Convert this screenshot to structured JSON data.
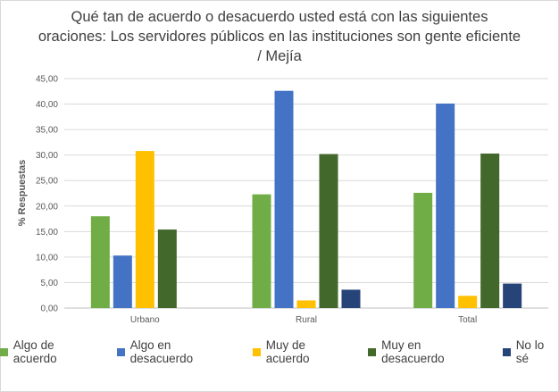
{
  "chart_data": {
    "type": "bar",
    "title": "Qué tan de acuerdo o desacuerdo usted está con las siguientes oraciones: Los servidores públicos en las instituciones son gente eficiente / Mejía",
    "xlabel": "",
    "ylabel": "% Respuestas",
    "ylim": [
      0,
      45
    ],
    "ytick_step": 5,
    "ytick_labels": [
      "0,00",
      "5,00",
      "10,00",
      "15,00",
      "20,00",
      "25,00",
      "30,00",
      "35,00",
      "40,00",
      "45,00"
    ],
    "grid": true,
    "legend_position": "bottom",
    "categories": [
      "Urbano",
      "Rural",
      "Total"
    ],
    "series": [
      {
        "name": "Algo de acuerdo",
        "color": "#70ad47",
        "values": [
          18.0,
          22.3,
          22.6
        ]
      },
      {
        "name": "Algo en desacuerdo",
        "color": "#4472c4",
        "values": [
          10.3,
          42.6,
          40.1
        ]
      },
      {
        "name": "Muy de acuerdo",
        "color": "#ffc000",
        "values": [
          30.8,
          1.5,
          2.4
        ]
      },
      {
        "name": "Muy en desacuerdo",
        "color": "#43682b",
        "values": [
          15.4,
          30.2,
          30.3
        ]
      },
      {
        "name": "No lo sé",
        "color": "#264478",
        "values": [
          0,
          3.6,
          4.8
        ]
      }
    ]
  }
}
